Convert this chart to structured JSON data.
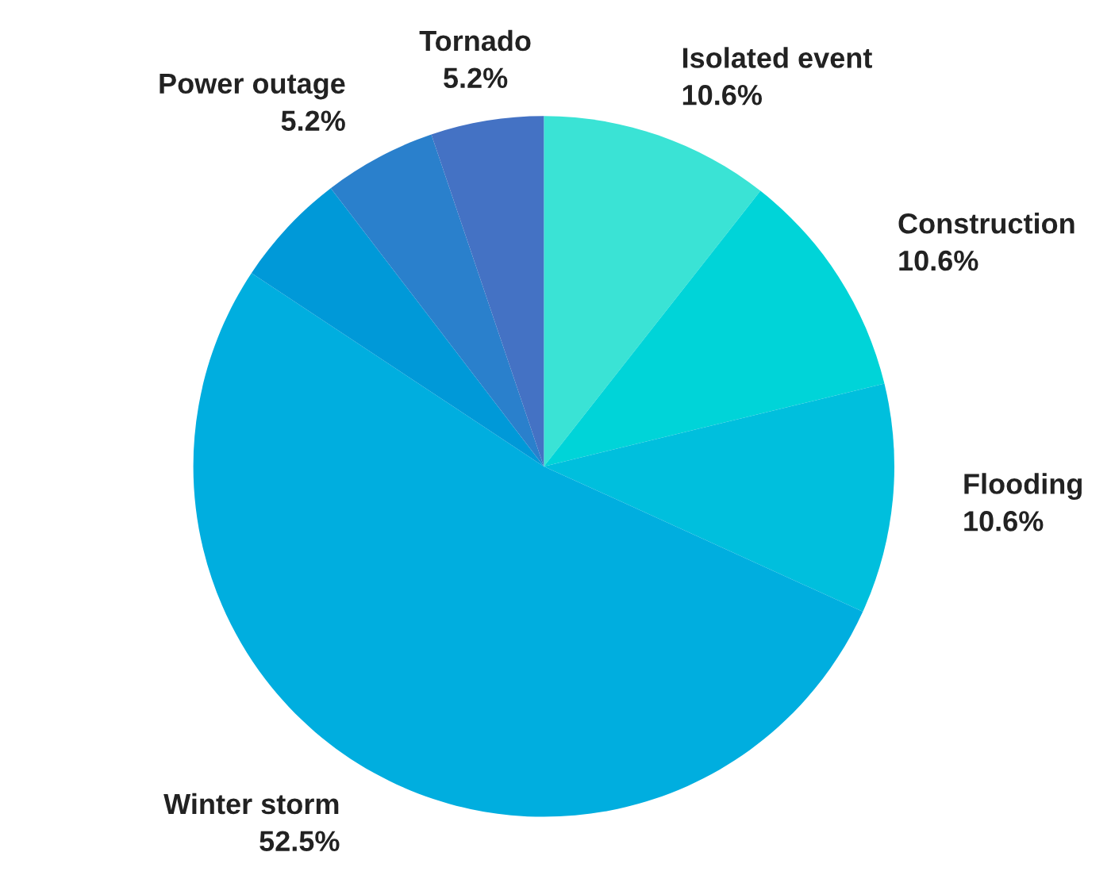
{
  "chart_data": {
    "type": "pie",
    "categories": [
      "Isolated event",
      "Construction",
      "Flooding",
      "Winter storm",
      null,
      "Power outage",
      "Tornado"
    ],
    "values": [
      10.6,
      10.6,
      10.6,
      52.5,
      5.3,
      5.2,
      5.2
    ],
    "value_labels": [
      "10.6%",
      "10.6%",
      "10.6%",
      "52.5%",
      null,
      "5.2%",
      "5.2%"
    ],
    "colors": [
      "#3ae3d5",
      "#00d4d8",
      "#00bfdd",
      "#00aedf",
      "#0099d8",
      "#2a80cc",
      "#4472c4"
    ],
    "legend": false
  }
}
